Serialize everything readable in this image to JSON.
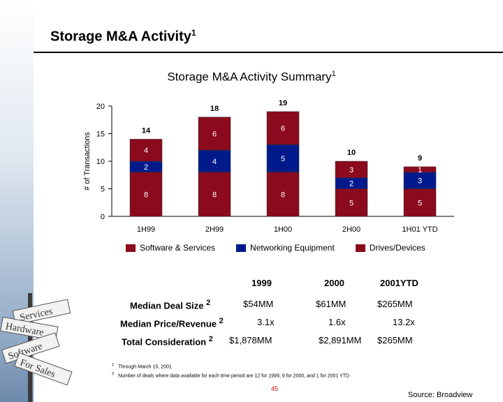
{
  "headline": {
    "text": "Storage M&A Activity",
    "sup": "1"
  },
  "chart_title": {
    "text": "Storage M&A Activity Summary",
    "sup": "1"
  },
  "chart_data": {
    "type": "bar",
    "stacked": true,
    "categories": [
      "1H99",
      "2H99",
      "1H00",
      "2H00",
      "1H01 YTD"
    ],
    "series": [
      {
        "name": "Drives/Devices",
        "values": [
          8,
          8,
          8,
          5,
          5
        ],
        "color": "#8b0a1e"
      },
      {
        "name": "Networking Equipment",
        "values": [
          2,
          4,
          5,
          2,
          3
        ],
        "color": "#001a8c"
      },
      {
        "name": "Software & Services",
        "values": [
          4,
          6,
          6,
          3,
          1
        ],
        "color": "#8b0a1e"
      }
    ],
    "totals": [
      14,
      18,
      19,
      10,
      9
    ],
    "ylabel": "# of Transactions",
    "ylim": [
      0,
      20
    ],
    "yticks": [
      0,
      5,
      10,
      15,
      20
    ],
    "legend_position": "bottom"
  },
  "legend": [
    {
      "label": "Software & Services",
      "color": "#8b0a1e"
    },
    {
      "label": "Networking Equipment",
      "color": "#001a8c"
    },
    {
      "label": "Drives/Devices",
      "color": "#8b0a1e"
    }
  ],
  "stats": {
    "years": [
      "1999",
      "2000",
      "2001YTD"
    ],
    "rows": [
      {
        "label": "Median Deal Size",
        "sup": "2",
        "values": [
          "$54MM",
          "$61MM",
          "$265MM"
        ]
      },
      {
        "label": "Median Price/Revenue",
        "sup": "2",
        "values": [
          "3.1x",
          "1.6x",
          "13.2x"
        ]
      },
      {
        "label": "Total Consideration",
        "sup": "2",
        "values": [
          "$1,878MM",
          "$2,891MM",
          "$265MM"
        ]
      }
    ]
  },
  "footnotes": [
    {
      "num": "1",
      "text": "Through March 15, 2001"
    },
    {
      "num": "2",
      "text": "Number of deals where data available for each time period are 12 for 1999, 9 for 2000, and 1 for 2001 YTD"
    }
  ],
  "page_number": "45",
  "source": "Source: Broadview",
  "signpost_words": [
    "Services",
    "Hardware",
    "Software",
    "For Sales"
  ]
}
